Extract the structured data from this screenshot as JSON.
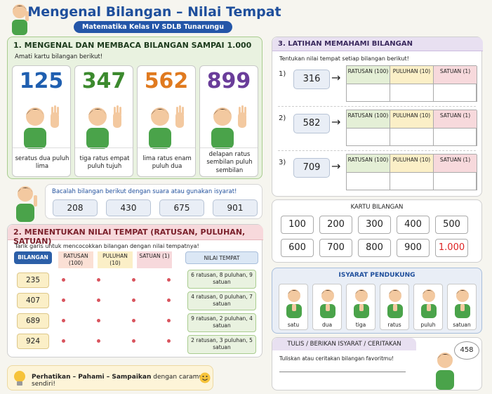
{
  "header": {
    "title": "Mengenal Bilangan – Nilai Tempat",
    "subtitle": "Matematika Kelas IV SDLB Tunarungu"
  },
  "section1": {
    "heading": "1. MENGENAL DAN MEMBACA BILANGAN SAMPAI 1.000",
    "instruction": "Amati kartu bilangan berikut!",
    "cards": [
      {
        "number": "125",
        "words": "seratus dua puluh lima",
        "color": "#1f5fb0"
      },
      {
        "number": "347",
        "words": "tiga ratus empat puluh tujuh",
        "color": "#3c8a2e"
      },
      {
        "number": "562",
        "words": "lima ratus enam puluh dua",
        "color": "#e07a1f"
      },
      {
        "number": "899",
        "words": "delapan ratus sembilan puluh sembilan",
        "color": "#6a3d9a"
      }
    ]
  },
  "read_box": {
    "instruction": "Bacalah bilangan berikut dengan suara atau gunakan isyarat!",
    "numbers": [
      "208",
      "430",
      "675",
      "901"
    ]
  },
  "section2": {
    "heading": "2. MENENTUKAN NILAI TEMPAT (RATUSAN, PULUHAN, SATUAN)",
    "instruction": "Tarik garis untuk mencocokkan bilangan dengan nilai tempatnya!",
    "bilangan_header": "BILANGAN",
    "place_headers": [
      "RATUSAN (100)",
      "PULUHAN (10)",
      "SATUAN (1)"
    ],
    "nilai_header": "NILAI TEMPAT",
    "numbers": [
      "235",
      "407",
      "689",
      "924"
    ],
    "values": [
      "6 ratusan, 8 puluhan, 9 satuan",
      "4 ratusan, 0 puluhan, 7 satuan",
      "9 ratusan, 2 puluhan, 4 satuan",
      "2 ratusan, 3 puluhan, 5 satuan"
    ]
  },
  "tip": {
    "part1": "Perhatikan – Pahami – Sampaikan",
    "part2": " dengan caramu sendiri!"
  },
  "section3": {
    "heading": "3. LATIHAN MEMAHAMI BILANGAN",
    "instruction": "Tentukan nilai tempat setiap bilangan berikut!",
    "rows": [
      {
        "label": "1)",
        "number": "316"
      },
      {
        "label": "2)",
        "number": "582"
      },
      {
        "label": "3)",
        "number": "709"
      }
    ],
    "columns": [
      {
        "label": "RATUSAN (100)",
        "color": "#e4efd6"
      },
      {
        "label": "PULUHAN (10)",
        "color": "#fbefc7"
      },
      {
        "label": "SATUAN (1)",
        "color": "#f7d9dc"
      }
    ]
  },
  "kartu_bilangan": {
    "title": "KARTU BILANGAN",
    "numbers": [
      "100",
      "200",
      "300",
      "400",
      "500",
      "600",
      "700",
      "800",
      "900",
      "1.000"
    ]
  },
  "isyarat": {
    "title": "ISYARAT PENDUKUNG",
    "labels": [
      "satu",
      "dua",
      "tiga",
      "ratus",
      "puluh",
      "satuan"
    ]
  },
  "tulis": {
    "title": "TULIS / BERIKAN ISYARAT / CERITAKAN",
    "instruction": "Tuliskan atau ceritakan bilangan favoritmu!",
    "bubble": "458"
  }
}
